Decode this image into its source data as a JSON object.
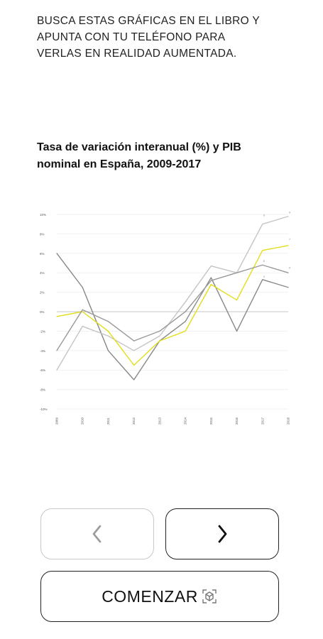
{
  "intro": {
    "lines": [
      "BUSCA ESTAS GRÁFICAS EN EL LIBRO Y",
      "APUNTA CON TU TELÉFONO PARA",
      "VERLAS EN REALIDAD AUMENTADA."
    ]
  },
  "chart_title_lines": [
    "Tasa de variación interanual (%) y PIB",
    "nominal en España, 2009-2017"
  ],
  "chart_data": {
    "type": "line",
    "title": "Tasa de variación interanual (%) y PIB nominal en España, 2009-2017",
    "x": [
      "2009",
      "2010",
      "2011",
      "2012",
      "2013",
      "2014",
      "2015",
      "2016",
      "2017",
      "2018"
    ],
    "yticks": [
      "10%",
      "8%",
      "6%",
      "4%",
      "2%",
      "0%",
      "-2%",
      "-4%",
      "-6%",
      "-8%",
      "-10%"
    ],
    "ylim": [
      -10,
      10
    ],
    "grid": true,
    "series": [
      {
        "color": "#888888",
        "values": [
          6,
          2.5,
          -4,
          -7,
          -3,
          -1,
          3.5,
          -2,
          3.3,
          2.5
        ]
      },
      {
        "color": "#c4c4c4",
        "values": [
          -6,
          -1.5,
          -2.5,
          -4,
          -2.5,
          1,
          4.7,
          4,
          9,
          9.8
        ]
      },
      {
        "color": "#e3dd1c",
        "values": [
          -0.5,
          0,
          -2,
          -5.5,
          -3,
          -2,
          2.8,
          1.2,
          6.3,
          6.8
        ]
      },
      {
        "color": "#999999",
        "values": [
          -4,
          0.2,
          -1,
          -3,
          -2,
          0,
          3.2,
          4,
          4.8,
          4
        ]
      }
    ],
    "end_labels": [
      "9",
      "9",
      "7",
      "5",
      "4",
      "3"
    ],
    "zero_line": "0%"
  },
  "buttons": {
    "prev_icon": "chevron-left-icon",
    "next_icon": "chevron-right-icon",
    "start_label": "COMENZAR",
    "start_icon": "ar-scan-icon"
  },
  "colors": {
    "accent_yellow": "#e3dd1c",
    "border_dark": "#222222",
    "border_disabled": "#c8c8c8"
  }
}
